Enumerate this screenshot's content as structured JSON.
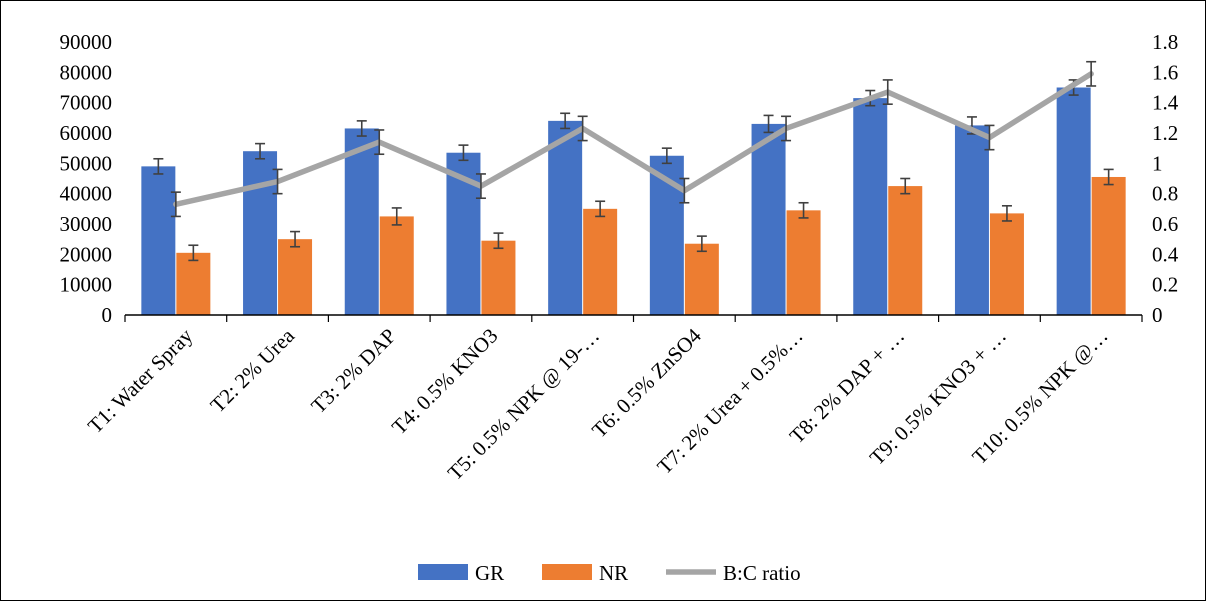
{
  "chart_data": {
    "type": "bar",
    "categories": [
      "T1: Water Spray",
      "T2: 2% Urea",
      "T3: 2% DAP",
      "T4: 0.5% KNO3",
      "T5: 0.5% NPK @ 19-…",
      "T6: 0.5% ZnSO4",
      "T7: 2% Urea + 0.5%…",
      "T8: 2% DAP + …",
      "T9: 0.5% KNO3 + …",
      "T10: 0.5% NPK @…"
    ],
    "series": [
      {
        "name": "GR",
        "axis": "left",
        "kind": "bar",
        "color": "#4472C4",
        "values": [
          49000,
          54000,
          61500,
          53500,
          64000,
          52500,
          63000,
          71500,
          62500,
          75000
        ],
        "error": [
          2500,
          2500,
          2500,
          2500,
          2500,
          2500,
          2800,
          2500,
          2800,
          2500
        ]
      },
      {
        "name": "NR",
        "axis": "left",
        "kind": "bar",
        "color": "#ED7D31",
        "values": [
          20500,
          25000,
          32500,
          24500,
          35000,
          23500,
          34500,
          42500,
          33500,
          45500
        ],
        "error": [
          2500,
          2500,
          2800,
          2500,
          2500,
          2500,
          2500,
          2500,
          2500,
          2500
        ]
      },
      {
        "name": "B:C ratio",
        "axis": "right",
        "kind": "line",
        "color": "#A5A5A5",
        "values": [
          0.73,
          0.88,
          1.14,
          0.85,
          1.23,
          0.82,
          1.23,
          1.47,
          1.17,
          1.59
        ],
        "error": [
          0.08,
          0.08,
          0.08,
          0.08,
          0.08,
          0.08,
          0.08,
          0.08,
          0.08,
          0.08
        ]
      }
    ],
    "yaxis_left": {
      "min": 0,
      "max": 90000,
      "ticks": [
        "0",
        "10000",
        "20000",
        "30000",
        "40000",
        "50000",
        "60000",
        "70000",
        "80000",
        "90000"
      ]
    },
    "yaxis_right": {
      "min": 0,
      "max": 1.8,
      "ticks": [
        "0",
        "0.2",
        "0.4",
        "0.6",
        "0.8",
        "1",
        "1.2",
        "1.4",
        "1.6",
        "1.8"
      ]
    },
    "grid": false,
    "legend_position": "bottom",
    "title": "",
    "xlabel": "",
    "ylabel": ""
  }
}
